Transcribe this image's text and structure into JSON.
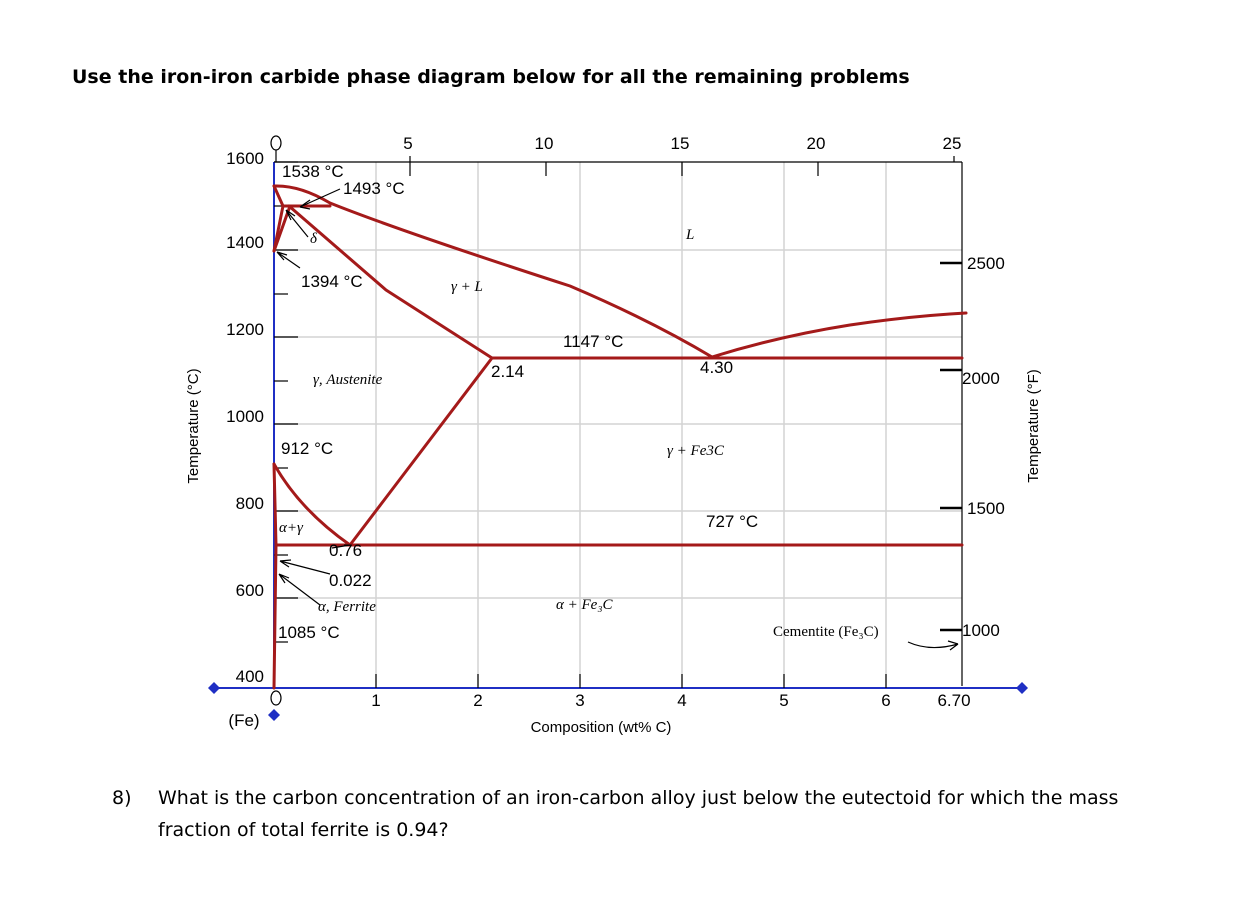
{
  "heading": "Use the iron-iron carbide phase diagram below for all the remaining problems",
  "diagram": {
    "y_axis_label": "Temperature (°C)",
    "y_ticks": [
      "1600",
      "1400",
      "1200",
      "1000",
      "800",
      "600",
      "400"
    ],
    "y2_axis_label": "Temperature (°F)",
    "y2_ticks": [
      "2500",
      "2000",
      "1500",
      "1000"
    ],
    "x_axis_label": "Composition (wt% C)",
    "x_ticks": [
      "0",
      "1",
      "2",
      "3",
      "4",
      "5",
      "6",
      "6.70"
    ],
    "x_origin_label": "(Fe)",
    "x2_ticks": [
      "0",
      "5",
      "10",
      "15",
      "20",
      "25"
    ],
    "annotations": {
      "t1538": "1538 °C",
      "t1493": "1493 °C",
      "delta": "δ",
      "t1394": "1394 °C",
      "gamma_l": "γ + L",
      "l": "L",
      "t1147": "1147 °C",
      "c214": "2.14",
      "c430": "4.30",
      "austenite": "γ, Austenite",
      "t912": "912 °C",
      "gamma_fe3c": "γ + Fe3C",
      "alpha_gamma": "α+γ",
      "t727": "727 °C",
      "c076": "0.76",
      "c0022": "0.022",
      "ferrite": "α, Ferrite",
      "alpha_fe3c": "α + Fe₃C",
      "cementite": "Cementite (Fe₃C)",
      "t1085": "1085 °C"
    },
    "colors": {
      "boundary": "#a41a1a",
      "axis": "#1f2fc4",
      "grid": "#d4d4d4"
    }
  },
  "question": {
    "number": "8)",
    "text": "What is the carbon concentration of an iron-carbon alloy just below the eutectoid for which the mass fraction of total ferrite is 0.94?"
  }
}
